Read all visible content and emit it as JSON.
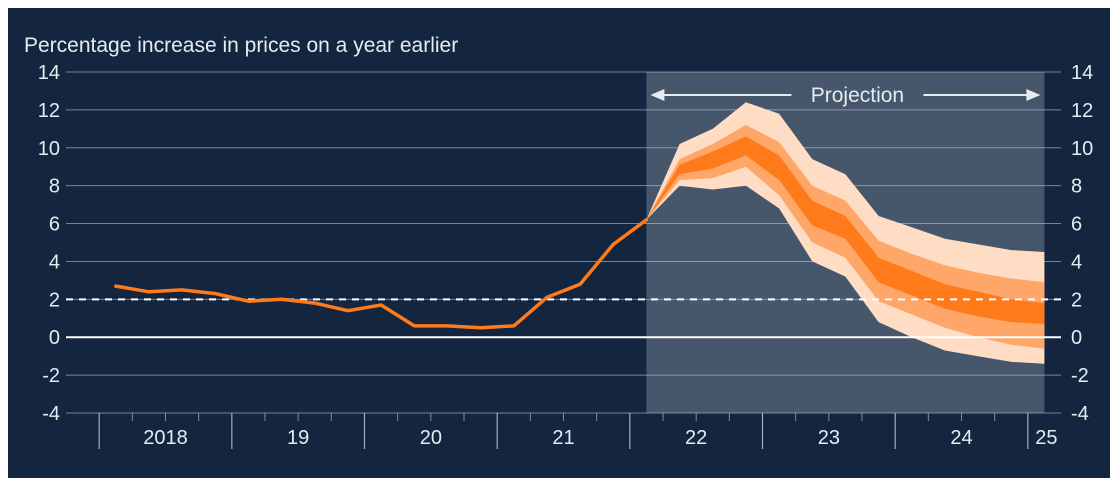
{
  "colors": {
    "background": "#14263f",
    "projection_shade": "#46566b",
    "gridline": "#c9d0da",
    "text": "#e6ebf1",
    "history_line": "#ff7a1a",
    "band_inner": "#ff7a1a",
    "band_middle": "#ffa669",
    "band_outer": "#ffdcc4",
    "target_line": "#ffffff"
  },
  "chart_data": {
    "type": "area",
    "subtitle": "Percentage increase in prices on a year earlier",
    "ylim": [
      -4,
      14
    ],
    "y_ticks": [
      "14",
      "12",
      "10",
      "8",
      "6",
      "4",
      "2",
      "0",
      "-2",
      "-4"
    ],
    "y_tick_values": [
      14,
      12,
      10,
      8,
      6,
      4,
      2,
      0,
      -2,
      -4
    ],
    "x_start": "2017-10",
    "x_end": "2025-04",
    "year_labels": [
      "2018",
      "19",
      "20",
      "21",
      "22",
      "23",
      "24",
      "25"
    ],
    "grid": true,
    "target_value": 2,
    "zero_line": 0,
    "projection_label": "Projection",
    "projection_start": "2021-Q3",
    "projection_end": "2025-Q1",
    "history": {
      "x": [
        "2018-Q1",
        "2018-Q2",
        "2018-Q3",
        "2018-Q4",
        "2019-Q1",
        "2019-Q2",
        "2019-Q3",
        "2019-Q4",
        "2020-Q1",
        "2020-Q2",
        "2020-Q3",
        "2020-Q4",
        "2021-Q1",
        "2021-Q2",
        "2021-Q3",
        "2021-Q4",
        "2022-Q1"
      ],
      "values": [
        2.7,
        2.4,
        2.5,
        2.3,
        1.9,
        2.0,
        1.8,
        1.4,
        1.7,
        0.6,
        0.6,
        0.5,
        0.6,
        2.1,
        2.8,
        4.9,
        6.2
      ]
    },
    "projection_bands": {
      "x": [
        "2022-Q1",
        "2022-Q2",
        "2022-Q3",
        "2022-Q4",
        "2023-Q1",
        "2023-Q2",
        "2023-Q3",
        "2023-Q4",
        "2024-Q1",
        "2024-Q2",
        "2024-Q3",
        "2024-Q4",
        "2025-Q1"
      ],
      "outer_upper": [
        6.2,
        10.2,
        11.0,
        12.4,
        11.8,
        9.4,
        8.6,
        6.4,
        5.8,
        5.2,
        4.9,
        4.6,
        4.5
      ],
      "middle_upper": [
        6.2,
        9.4,
        10.2,
        11.2,
        10.3,
        8.0,
        7.2,
        5.1,
        4.4,
        3.8,
        3.4,
        3.1,
        2.9
      ],
      "inner_upper": [
        6.2,
        9.1,
        9.8,
        10.6,
        9.6,
        7.2,
        6.4,
        4.2,
        3.5,
        2.8,
        2.4,
        2.0,
        1.8
      ],
      "inner_lower": [
        6.2,
        8.6,
        8.9,
        9.6,
        8.3,
        5.9,
        5.2,
        2.9,
        2.2,
        1.5,
        1.1,
        0.8,
        0.7
      ],
      "middle_lower": [
        6.2,
        8.3,
        8.4,
        9.0,
        7.5,
        5.0,
        4.2,
        1.9,
        1.2,
        0.5,
        0.0,
        -0.4,
        -0.6
      ],
      "outer_lower": [
        6.2,
        8.0,
        7.8,
        8.0,
        6.8,
        4.0,
        3.2,
        0.8,
        0.0,
        -0.7,
        -1.0,
        -1.3,
        -1.4
      ]
    }
  }
}
